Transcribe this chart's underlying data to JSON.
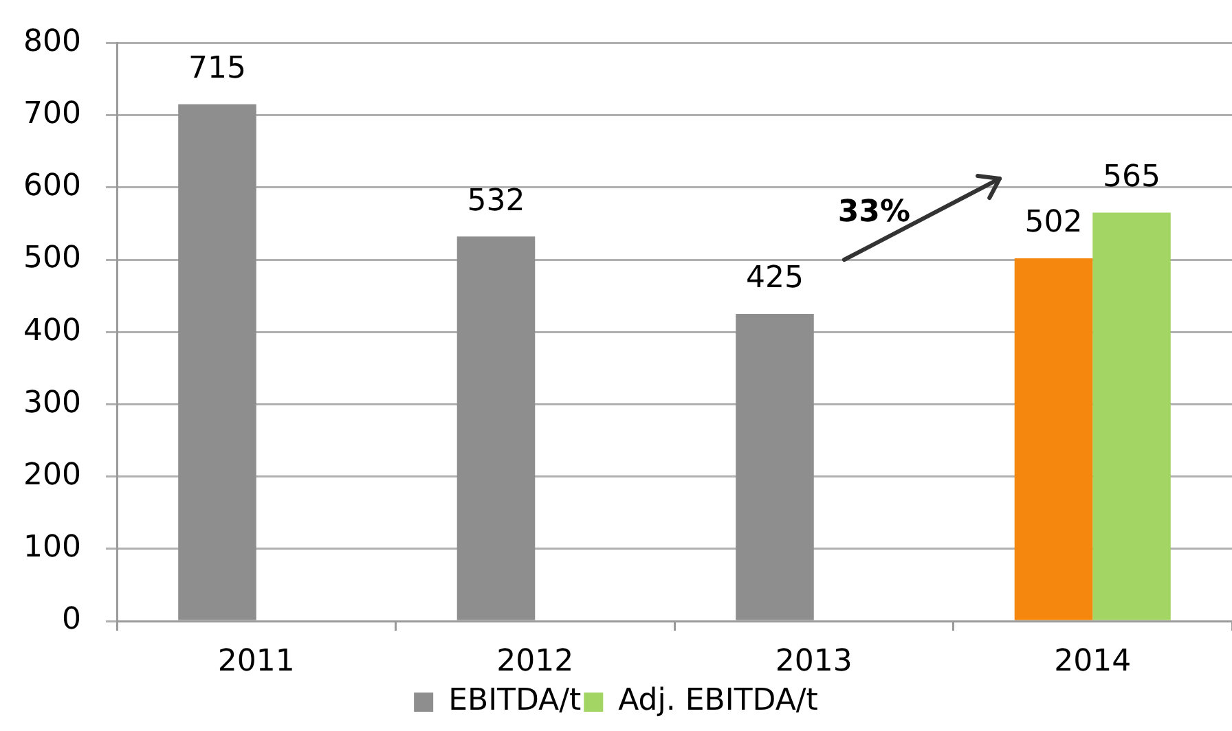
{
  "chart_data": {
    "type": "bar",
    "categories": [
      "2011",
      "2012",
      "2013",
      "2014"
    ],
    "series": [
      {
        "name": "EBITDA/t",
        "color": "#8e8e8e",
        "colors": [
          "#8e8e8e",
          "#8e8e8e",
          "#8e8e8e",
          "#f5870f"
        ],
        "values": [
          715,
          532,
          425,
          502
        ]
      },
      {
        "name": "Adj. EBITDA/t",
        "color": "#a2d563",
        "values": [
          null,
          null,
          null,
          565
        ]
      }
    ],
    "ylim": [
      0,
      800
    ],
    "yticks": [
      0,
      100,
      200,
      300,
      400,
      500,
      600,
      700,
      800
    ],
    "grid": "y",
    "legend": "bottom",
    "data_labels": true,
    "annotations": [
      "33%"
    ]
  }
}
